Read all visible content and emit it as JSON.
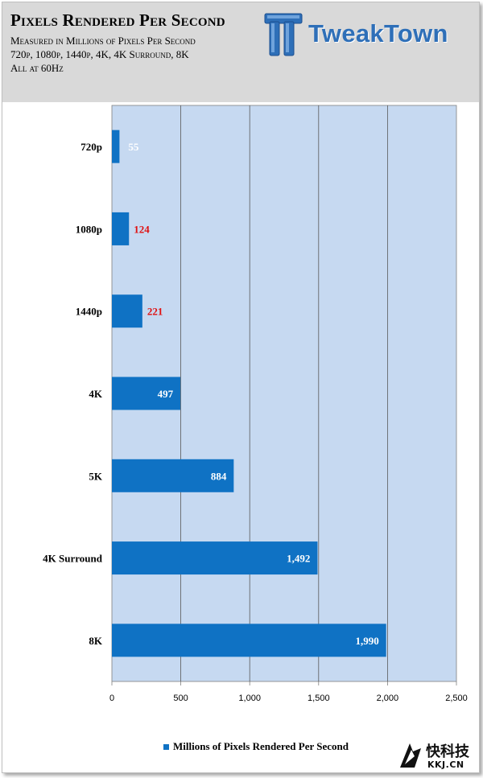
{
  "header": {
    "title": "Pixels Rendered Per Second",
    "subtitle_lines": [
      "Measured in Millions of Pixels Per Second",
      "720p, 1080p, 1440p, 4K, 4K Surround, 8K",
      "All at 60Hz"
    ],
    "logo_text": "TweakTown"
  },
  "watermark": {
    "cn": "快科技",
    "en": "KKJ.CN"
  },
  "colors": {
    "bar": "#0f72c4",
    "plot_bg": "#c6d9f1",
    "header_bg": "#d9d9d9",
    "label_white": "#ffffff",
    "label_red": "#e01010"
  },
  "chart_data": {
    "type": "bar",
    "orientation": "horizontal",
    "categories": [
      "720p",
      "1080p",
      "1440p",
      "4K",
      "5K",
      "4K Surround",
      "8K"
    ],
    "series": [
      {
        "name": "Millions of Pixels Rendered Per Second",
        "values": [
          55,
          124,
          221,
          497,
          884,
          1492,
          1990
        ]
      }
    ],
    "data_labels": [
      "55",
      "124",
      "221",
      "497",
      "884",
      "1,492",
      "1,990"
    ],
    "data_label_colors": [
      "#ffffff",
      "#e01010",
      "#e01010",
      "#ffffff",
      "#ffffff",
      "#ffffff",
      "#ffffff"
    ],
    "xlim": [
      0,
      2500
    ],
    "xticks": [
      0,
      500,
      1000,
      1500,
      2000,
      2500
    ],
    "xtick_labels": [
      "0",
      "500",
      "1,000",
      "1,500",
      "2,000",
      "2,500"
    ],
    "grid": true,
    "legend_position": "bottom"
  }
}
